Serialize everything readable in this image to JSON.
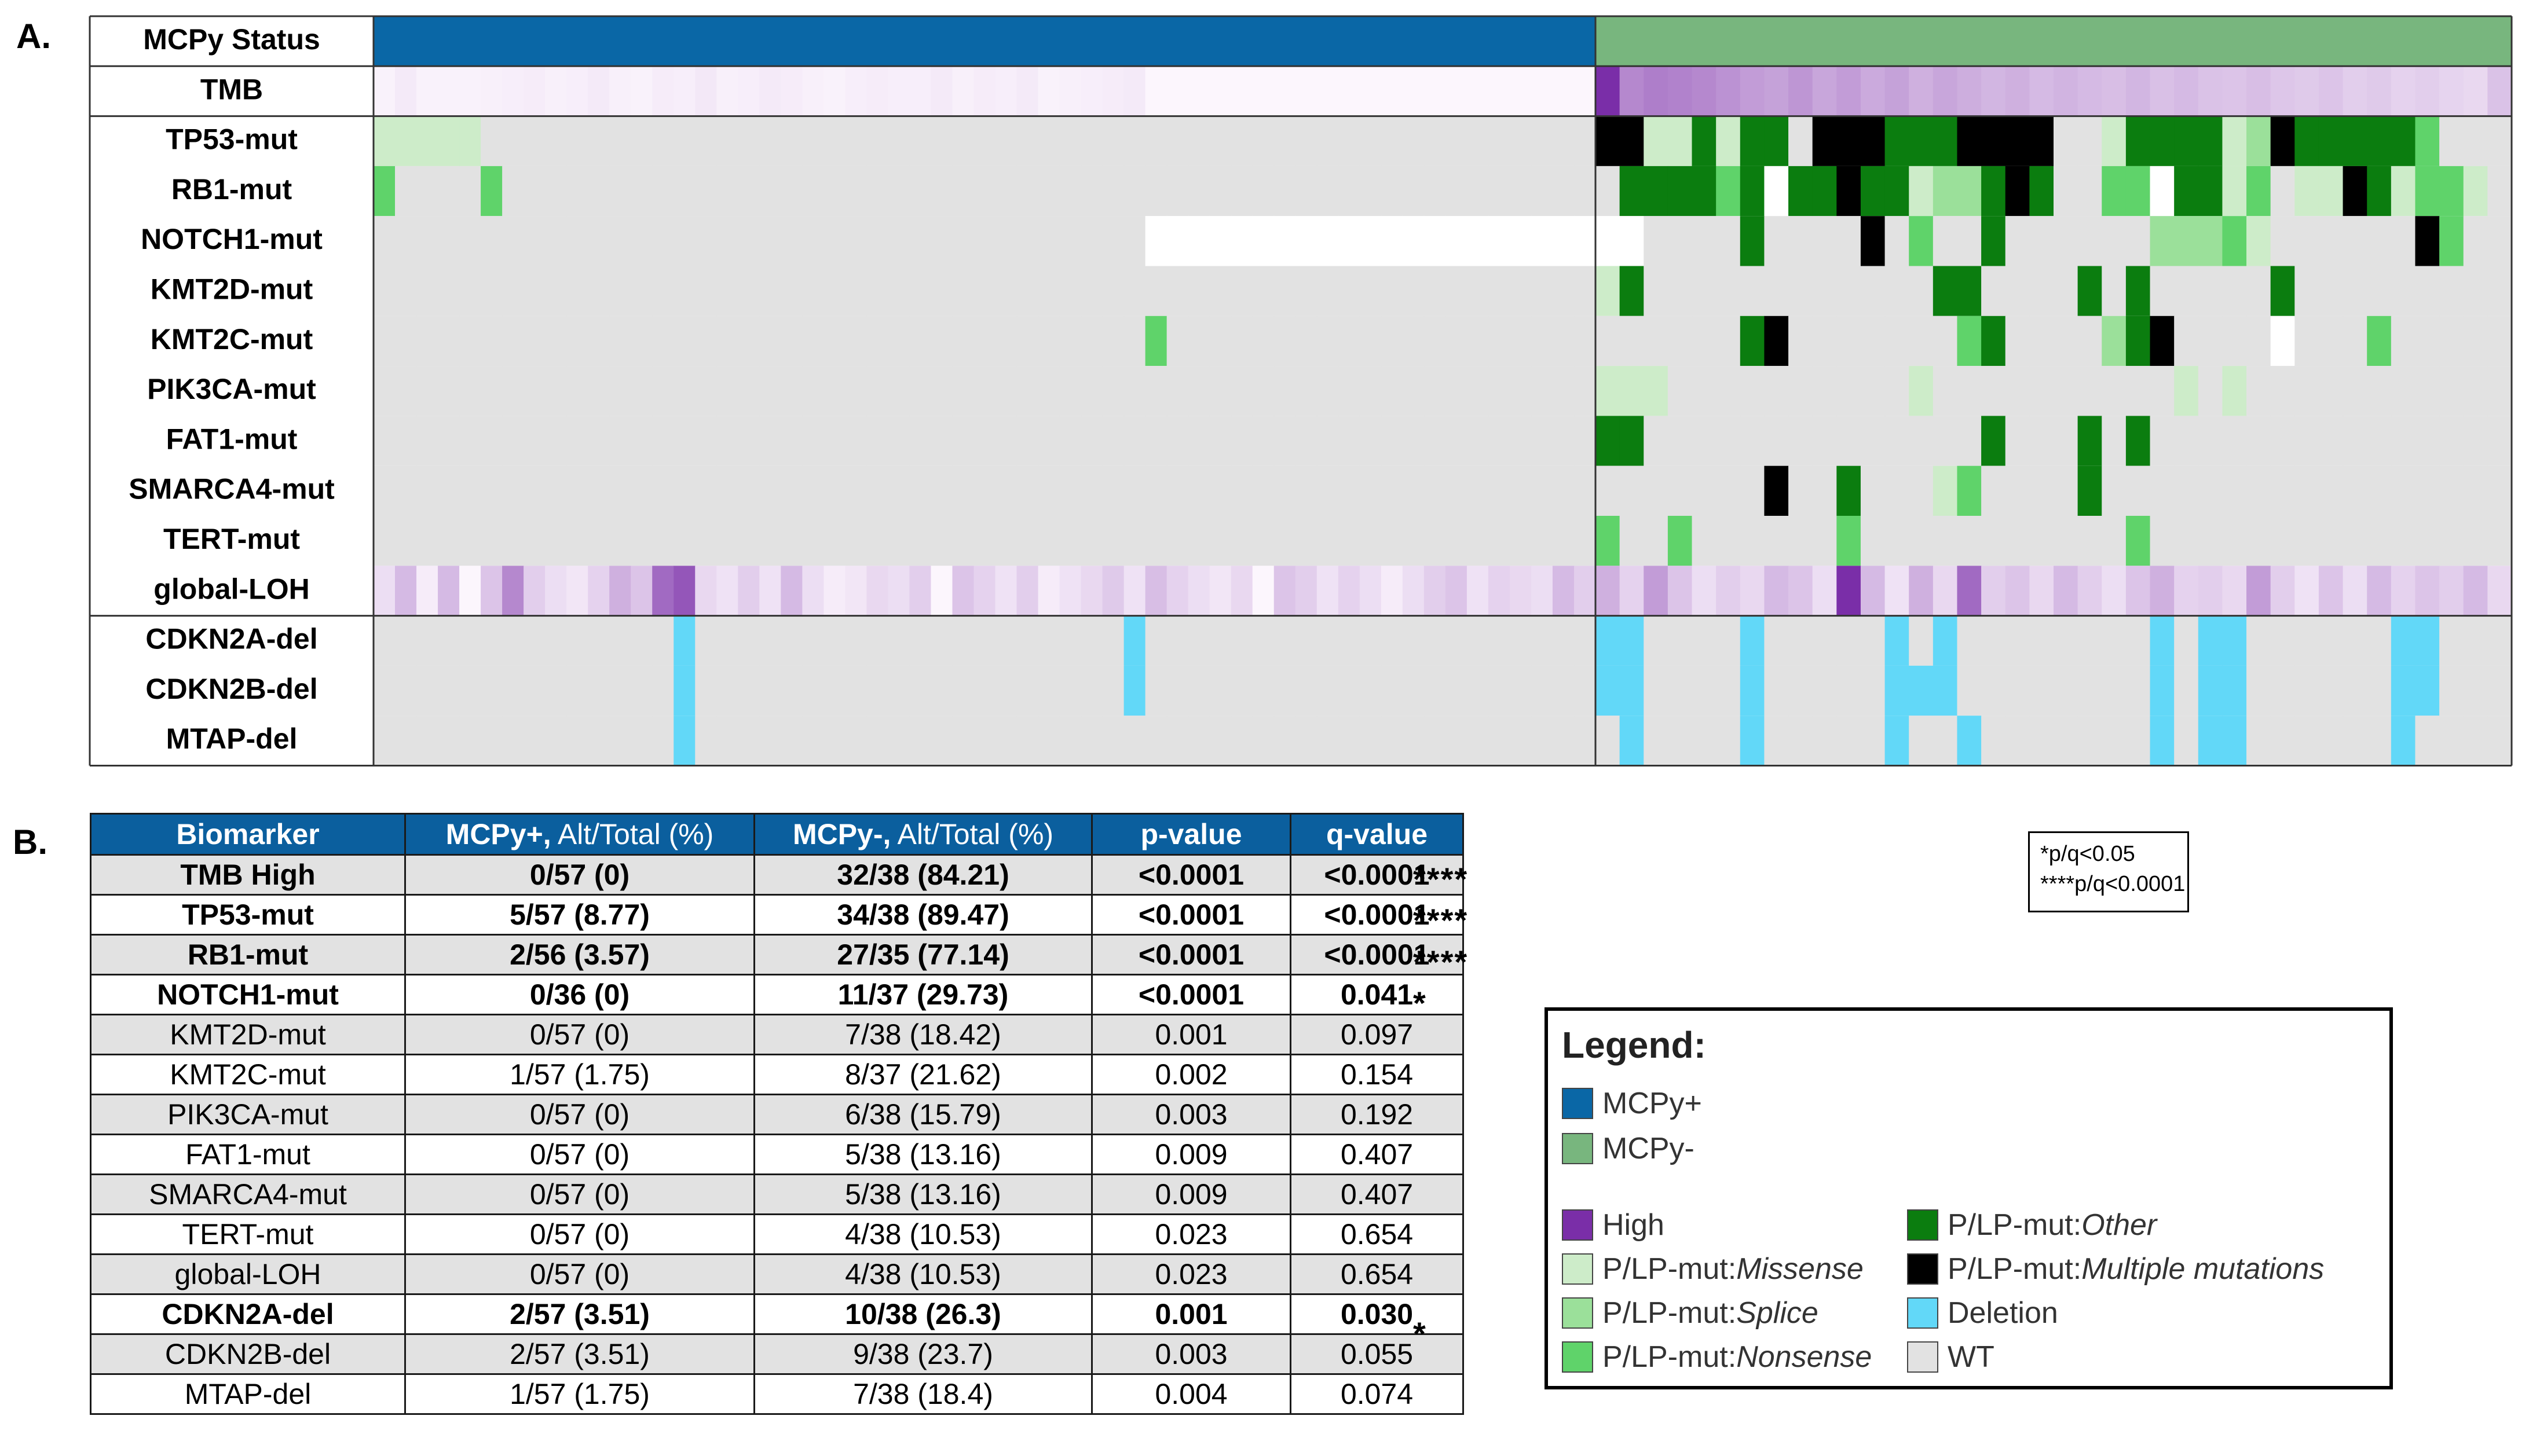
{
  "panel_labels": {
    "a": "A.",
    "b": "B."
  },
  "colors": {
    "mcpy_pos": "#0a67a6",
    "mcpy_neg": "#78b67e",
    "wt": "#e2e2e2",
    "missense": "#cdecc9",
    "splice": "#9be09a",
    "nonsense": "#5fd36a",
    "other": "#0b7d0f",
    "multiple": "#000000",
    "deletion": "#62d8f8",
    "high": "#7a2ea8",
    "header_blue": "#0b5f9e"
  },
  "chart_data": [
    {
      "type": "heatmap",
      "groups": [
        "MCPy+",
        "MCPy-"
      ],
      "group_sizes": [
        57,
        38
      ],
      "rows": [
        "MCPy Status",
        "TMB",
        "TP53-mut",
        "RB1-mut",
        "NOTCH1-mut",
        "KMT2D-mut",
        "KMT2C-mut",
        "PIK3CA-mut",
        "FAT1-mut",
        "SMARCA4-mut",
        "TERT-mut",
        "global-LOH",
        "CDKN2A-del",
        "CDKN2B-del",
        "MTAP-del"
      ],
      "codes": {
        "W": "WT",
        "B": "no data",
        "m": "P/LP-mut: Missense",
        "s": "P/LP-mut: Splice",
        "n": "P/LP-mut: Nonsense",
        "o": "P/LP-mut: Other",
        "x": "P/LP-mut: Multiple mutations"
      },
      "mutation_rows": {
        "TP53-mut": "mmmmmWWWWWWWWWWWWWWWWWWWWWWWWWWWWWWWWWWWWWWWWWWWWWWWWWWWW|xxmmomooWxxxoooxxxxWWmoooomsxooooonWWWoW",
        "RB1-mut": "nWWWWnWWWWWWWWWWWWWWWWWWWWWWWWWWWWWWWWWWWWWWWWWWWWWWWWWWWW|oooonoBooxoomssoxoWWnnBoomnWmmxomnnmW",
        "NOTCH1-mut": "WWWWWWWWWWWWWWWWWWWWWWWWWWWWWWWWWWWWBBBBBBBBBBBBBBBBBBBBBBB|WWWWoWWWWxWnWWoWWWWWWsssnmWWWWWWxnWWWW",
        "KMT2D-mut": "WWWWWWWWWWWWWWWWWWWWWWWWWWWWWWWWWWWWWWWWWWWWWWWWWWWWWWWWW|moWWWWWWWWWWWWooWWWWoWoWWWWWoWWWWWWWWW",
        "KMT2C-mut": "WWWWWWWWWWWWWWWWWWWWWWWWWWWWWWWWWWWWnWWWWWWWWWWWWWWWWWWWW|WWWWWWoxWWWWWWWnoWWWWsoxWWWWBWWWnWWWWW",
        "PIK3CA-mut": "WWWWWWWWWWWWWWWWWWWWWWWWWWWWWWWWWWWWWWWWWWWWWWWWWWWWWWWWW|mmmWWWWWWWWWWmWWWWWWWWWWmWmWWWWWWWWWW",
        "FAT1-mut": "WWWWWWWWWWWWWWWWWWWWWWWWWWWWWWWWWWWWWWWWWWWWWWWWWWWWWWWWW|ooWWWWWWWWWWWWWWoWWWoWoWWWWWWWWWWWWWWW",
        "SMARCA4-mut": "WWWWWWWWWWWWWWWWWWWWWWWWWWWWWWWWWWWWWWWWWWWWWWWWWWWWWWWWW|WWWWWWWxWWoWWWmnWWWWoWWWWWWWWWWWWWWWWW",
        "TERT-mut": "WWWWWWWWWWWWWWWWWWWWWWWWWWWWWWWWWWWWWWWWWWWWWWWWWWWWWWWWW|nWWnWWWWWWnWWWWWWWWWWWnWWWWWWWWWWWWWWW"
      },
      "tmb_levels": [
        0.02,
        0.06,
        0.02,
        0.02,
        0.02,
        0.03,
        0.04,
        0.05,
        0.03,
        0.04,
        0.06,
        0.03,
        0.02,
        0.05,
        0.04,
        0.07,
        0.03,
        0.04,
        0.06,
        0.05,
        0.03,
        0.02,
        0.04,
        0.05,
        0.04,
        0.04,
        0.06,
        0.03,
        0.05,
        0.04,
        0.06,
        0.02,
        0.03,
        0.04,
        0.05,
        0.06,
        0.0,
        0.0,
        0.0,
        0.0,
        0.0,
        0.0,
        0.0,
        0.0,
        0.0,
        0.0,
        0.0,
        0.0,
        0.0,
        0.0,
        0.0,
        0.0,
        0.0,
        0.0,
        0.0,
        0.0,
        0.0,
        1.0,
        0.55,
        0.6,
        0.58,
        0.55,
        0.5,
        0.45,
        0.42,
        0.48,
        0.4,
        0.45,
        0.38,
        0.42,
        0.35,
        0.4,
        0.36,
        0.32,
        0.35,
        0.3,
        0.33,
        0.3,
        0.28,
        0.32,
        0.27,
        0.3,
        0.26,
        0.25,
        0.28,
        0.24,
        0.22,
        0.25,
        0.2,
        0.22,
        0.18,
        0.2,
        0.17,
        0.15,
        0.26
      ],
      "loh_levels": [
        0.12,
        0.3,
        0.05,
        0.3,
        0.0,
        0.25,
        0.55,
        0.2,
        0.12,
        0.08,
        0.18,
        0.35,
        0.25,
        0.7,
        0.8,
        0.15,
        0.1,
        0.2,
        0.1,
        0.3,
        0.12,
        0.05,
        0.08,
        0.15,
        0.12,
        0.2,
        0.0,
        0.25,
        0.18,
        0.1,
        0.2,
        0.05,
        0.1,
        0.15,
        0.22,
        0.1,
        0.28,
        0.18,
        0.12,
        0.08,
        0.15,
        0.0,
        0.25,
        0.2,
        0.1,
        0.18,
        0.12,
        0.05,
        0.12,
        0.2,
        0.25,
        0.1,
        0.18,
        0.15,
        0.12,
        0.3,
        0.2,
        0.35,
        0.18,
        0.45,
        0.25,
        0.12,
        0.2,
        0.15,
        0.3,
        0.25,
        0.12,
        1.0,
        0.3,
        0.1,
        0.35,
        0.15,
        0.7,
        0.2,
        0.25,
        0.15,
        0.3,
        0.2,
        0.12,
        0.25,
        0.35,
        0.18,
        0.2,
        0.15,
        0.45,
        0.2,
        0.1,
        0.25,
        0.12,
        0.3,
        0.18,
        0.25,
        0.2,
        0.3,
        0.15,
        0.25,
        0.1
      ],
      "deletion_rows": {
        "CDKN2A-del": [
          14,
          35,
          57,
          58,
          58,
          63,
          69,
          71,
          71,
          80,
          82,
          83,
          90,
          91
        ],
        "CDKN2B-del": [
          14,
          35,
          57,
          58,
          58,
          63,
          69,
          70,
          71,
          80,
          82,
          83,
          90,
          91
        ],
        "MTAP-del": [
          14,
          58,
          63,
          69,
          72,
          80,
          82,
          83,
          90
        ]
      }
    },
    {
      "type": "table",
      "columns": [
        {
          "main": "Biomarker",
          "sub": ""
        },
        {
          "main": "MCPy+,",
          "sub": " Alt/Total (%)"
        },
        {
          "main": "MCPy-,",
          "sub": " Alt/Total (%)"
        },
        {
          "main": "p-value",
          "sub": ""
        },
        {
          "main": "q-value",
          "sub": ""
        }
      ],
      "rows": [
        {
          "cells": [
            "TMB High",
            "0/57 (0)",
            "32/38 (84.21)",
            "<0.0001",
            "<0.0001"
          ],
          "bold": true,
          "stars": "****"
        },
        {
          "cells": [
            "TP53-mut",
            "5/57 (8.77)",
            "34/38 (89.47)",
            "<0.0001",
            "<0.0001"
          ],
          "bold": true,
          "stars": "****"
        },
        {
          "cells": [
            "RB1-mut",
            "2/56 (3.57)",
            "27/35 (77.14)",
            "<0.0001",
            "<0.0001"
          ],
          "bold": true,
          "stars": "****"
        },
        {
          "cells": [
            "NOTCH1-mut",
            "0/36 (0)",
            "11/37 (29.73)",
            "<0.0001",
            "0.041"
          ],
          "bold": true,
          "stars": "*"
        },
        {
          "cells": [
            "KMT2D-mut",
            "0/57 (0)",
            "7/38 (18.42)",
            "0.001",
            "0.097"
          ],
          "bold": false,
          "stars": ""
        },
        {
          "cells": [
            "KMT2C-mut",
            "1/57 (1.75)",
            "8/37 (21.62)",
            "0.002",
            "0.154"
          ],
          "bold": false,
          "stars": ""
        },
        {
          "cells": [
            "PIK3CA-mut",
            "0/57 (0)",
            "6/38 (15.79)",
            "0.003",
            "0.192"
          ],
          "bold": false,
          "stars": ""
        },
        {
          "cells": [
            "FAT1-mut",
            "0/57 (0)",
            "5/38 (13.16)",
            "0.009",
            "0.407"
          ],
          "bold": false,
          "stars": ""
        },
        {
          "cells": [
            "SMARCA4-mut",
            "0/57 (0)",
            "5/38 (13.16)",
            "0.009",
            "0.407"
          ],
          "bold": false,
          "stars": ""
        },
        {
          "cells": [
            "TERT-mut",
            "0/57 (0)",
            "4/38 (10.53)",
            "0.023",
            "0.654"
          ],
          "bold": false,
          "stars": ""
        },
        {
          "cells": [
            "global-LOH",
            "0/57 (0)",
            "4/38 (10.53)",
            "0.023",
            "0.654"
          ],
          "bold": false,
          "stars": ""
        },
        {
          "cells": [
            "CDKN2A-del",
            "2/57 (3.51)",
            "10/38 (26.3)",
            "0.001",
            "0.030"
          ],
          "bold": true,
          "stars": "*"
        },
        {
          "cells": [
            "CDKN2B-del",
            "2/57 (3.51)",
            "9/38 (23.7)",
            "0.003",
            "0.055"
          ],
          "bold": false,
          "stars": ""
        },
        {
          "cells": [
            "MTAP-del",
            "1/57 (1.75)",
            "7/38 (18.4)",
            "0.004",
            "0.074"
          ],
          "bold": false,
          "stars": ""
        }
      ]
    }
  ],
  "significance_note": [
    "*p/q<0.05",
    "****p/q<0.0001"
  ],
  "legend": {
    "title": "Legend:",
    "items": [
      {
        "label": "MCPy+",
        "italic": "",
        "color": "#0a67a6"
      },
      {
        "label": "MCPy-",
        "italic": "",
        "color": "#78b67e"
      },
      {
        "label": "High",
        "italic": "",
        "color": "#7a2ea8"
      },
      {
        "label": "P/LP-mut: ",
        "italic": "Missense",
        "color": "#cdecc9"
      },
      {
        "label": "P/LP-mut: ",
        "italic": "Splice",
        "color": "#9be09a"
      },
      {
        "label": "P/LP-mut: ",
        "italic": "Nonsense",
        "color": "#5fd36a"
      },
      {
        "label": "P/LP-mut: ",
        "italic": "Other",
        "color": "#0b7d0f"
      },
      {
        "label": "P/LP-mut: ",
        "italic": "Multiple mutations",
        "color": "#000000"
      },
      {
        "label": "Deletion",
        "italic": "",
        "color": "#62d8f8"
      },
      {
        "label": "WT",
        "italic": "",
        "color": "#e2e2e2"
      }
    ]
  }
}
